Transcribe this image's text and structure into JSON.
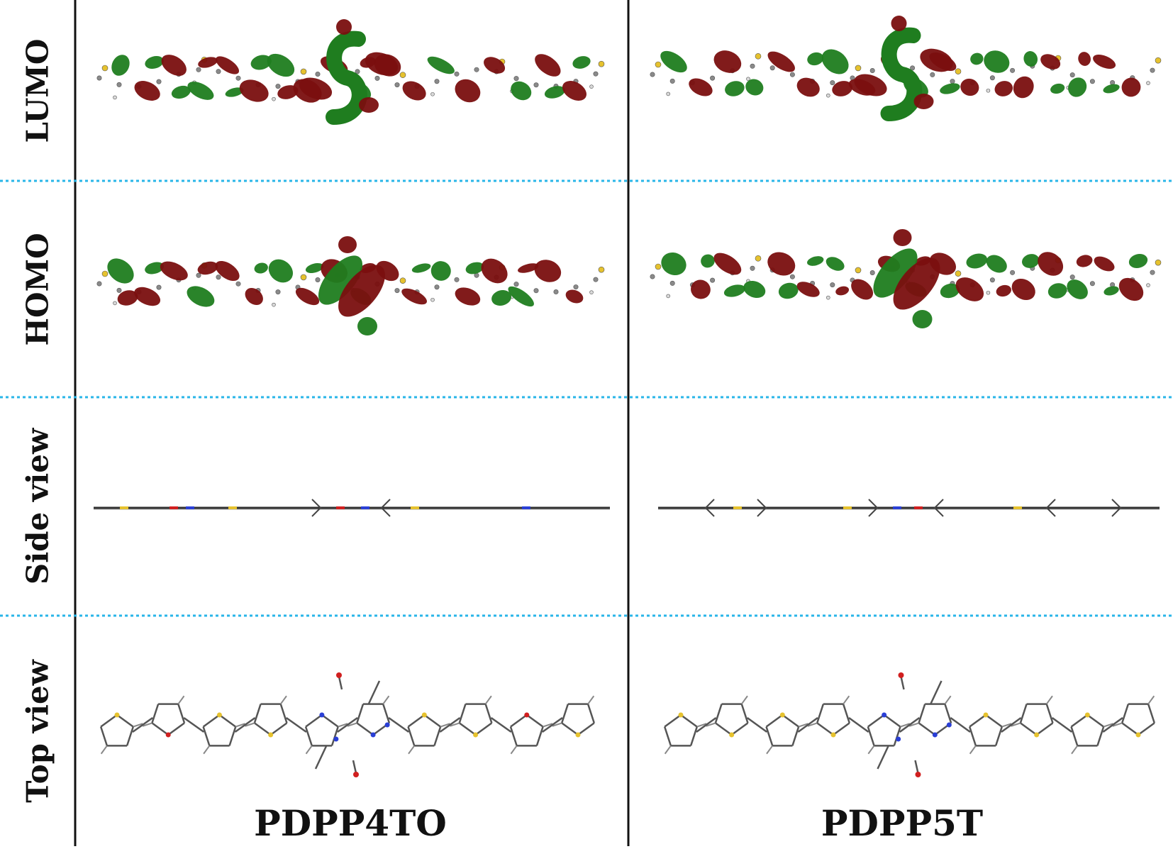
{
  "rows": [
    {
      "id": "lumo",
      "label": "LUMO"
    },
    {
      "id": "homo",
      "label": "HOMO"
    },
    {
      "id": "side",
      "label": "Side view"
    },
    {
      "id": "top",
      "label": "Top view"
    }
  ],
  "columns": [
    {
      "id": "pdpp4to",
      "label": "PDPP4TO"
    },
    {
      "id": "pdpp5t",
      "label": "PDPP5T"
    }
  ],
  "colors": {
    "orbital_positive": "#1f7d1f",
    "orbital_negative": "#7a0f0f",
    "carbon": "#8a8a8a",
    "hydrogen": "#d9d9d9",
    "sulfur": "#e6c22e",
    "nitrogen": "#2a3fd6",
    "oxygen": "#d11f1f",
    "divider": "#29b6e8",
    "frame": "#111111"
  }
}
